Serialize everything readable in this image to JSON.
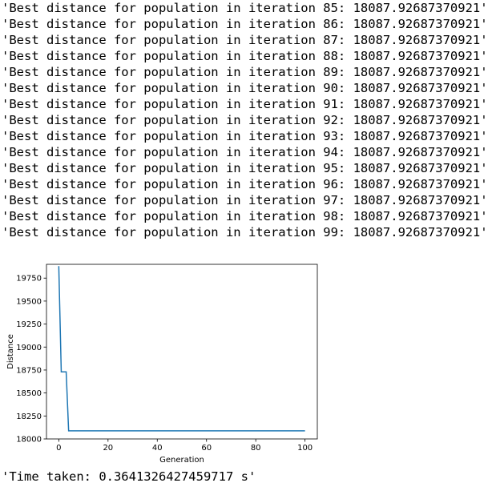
{
  "output": {
    "log_lines": [
      "'Best distance for population in iteration 85: 18087.92687370921'",
      "'Best distance for population in iteration 86: 18087.92687370921'",
      "'Best distance for population in iteration 87: 18087.92687370921'",
      "'Best distance for population in iteration 88: 18087.92687370921'",
      "'Best distance for population in iteration 89: 18087.92687370921'",
      "'Best distance for population in iteration 90: 18087.92687370921'",
      "'Best distance for population in iteration 91: 18087.92687370921'",
      "'Best distance for population in iteration 92: 18087.92687370921'",
      "'Best distance for population in iteration 93: 18087.92687370921'",
      "'Best distance for population in iteration 94: 18087.92687370921'",
      "'Best distance for population in iteration 95: 18087.92687370921'",
      "'Best distance for population in iteration 96: 18087.92687370921'",
      "'Best distance for population in iteration 97: 18087.92687370921'",
      "'Best distance for population in iteration 98: 18087.92687370921'",
      "'Best distance for population in iteration 99: 18087.92687370921'"
    ],
    "time_taken": "'Time taken: 0.3641326427459717 s'"
  },
  "colors": {
    "line": "#1f77b4",
    "axes": "#000000"
  },
  "chart_data": {
    "type": "line",
    "title": "",
    "xlabel": "Generation",
    "ylabel": "Distance",
    "xlim": [
      -5,
      105
    ],
    "ylim": [
      18000,
      19900
    ],
    "x_ticks": [
      0,
      20,
      40,
      60,
      80,
      100
    ],
    "y_ticks": [
      18000,
      18250,
      18500,
      18750,
      19000,
      19250,
      19500,
      19750
    ],
    "x_tick_labels": [
      "0",
      "20",
      "40",
      "60",
      "80",
      "100"
    ],
    "y_tick_labels": [
      "18000",
      "18250",
      "18500",
      "18750",
      "19000",
      "19250",
      "19500",
      "19750"
    ],
    "grid": false,
    "series": [
      {
        "x": [
          0,
          1,
          2,
          3,
          4,
          5,
          10,
          20,
          30,
          40,
          50,
          60,
          70,
          80,
          90,
          100
        ],
        "y": [
          19880,
          18730,
          18730,
          18730,
          18088,
          18088,
          18088,
          18088,
          18088,
          18088,
          18088,
          18088,
          18088,
          18088,
          18088,
          18088
        ]
      }
    ]
  }
}
